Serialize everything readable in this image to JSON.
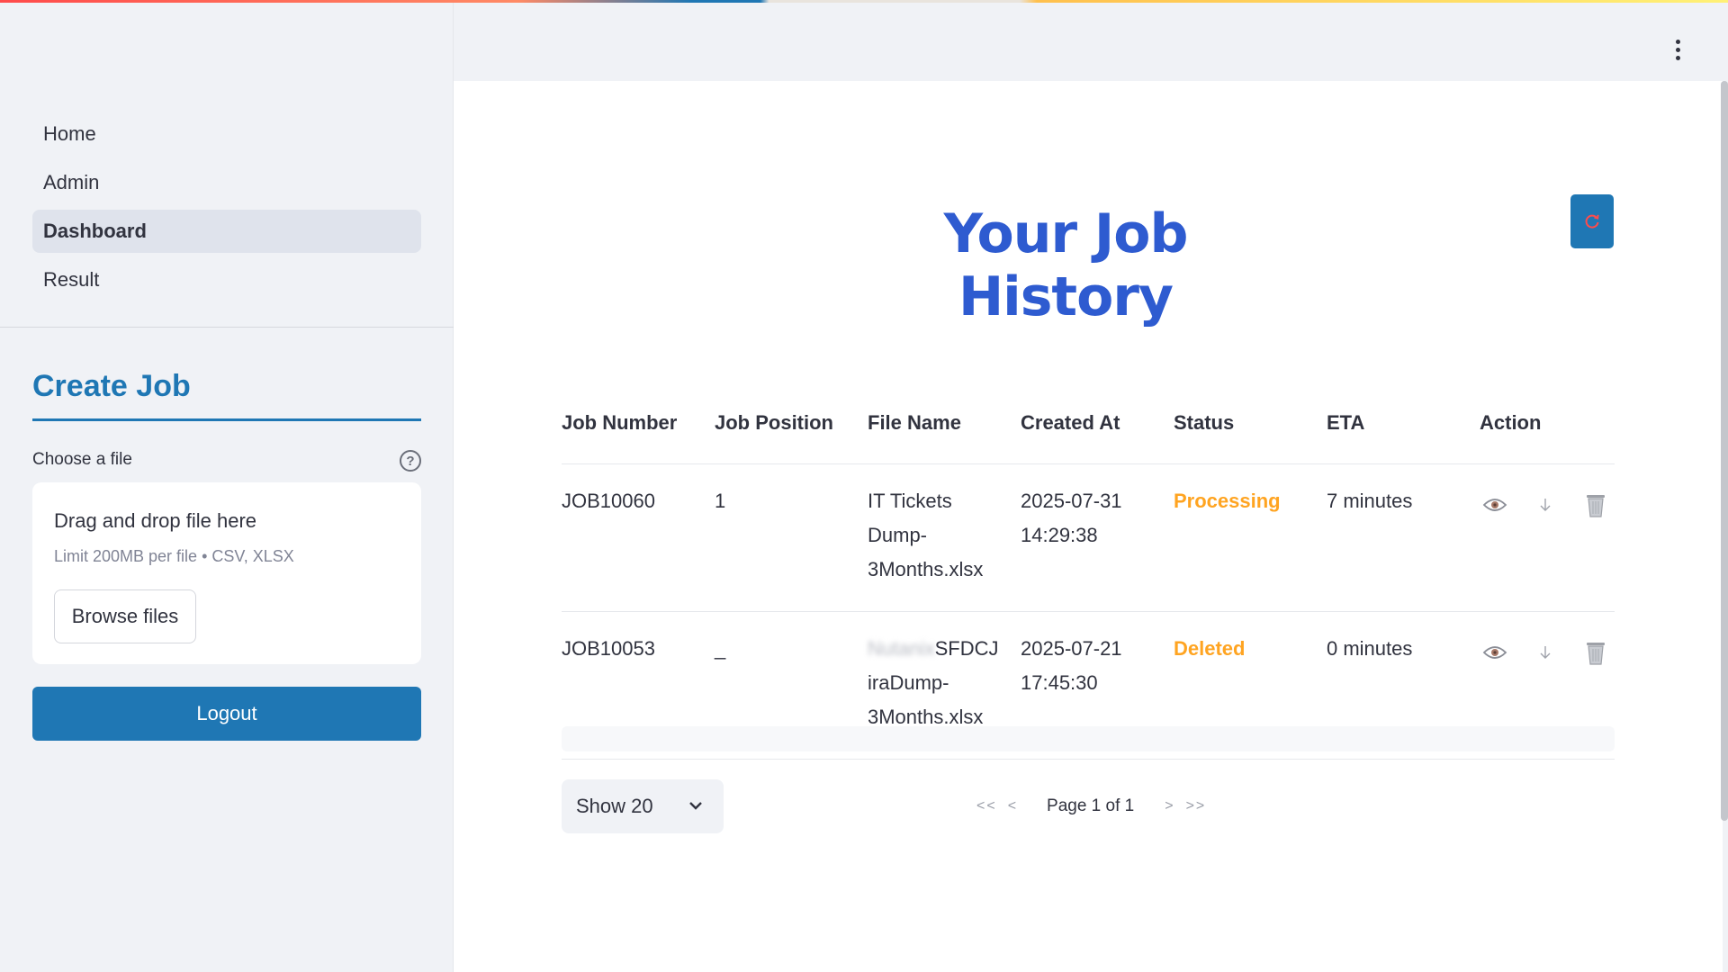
{
  "sidebar": {
    "nav": [
      "Home",
      "Admin",
      "Dashboard",
      "Result"
    ],
    "active": "Dashboard",
    "create_job": {
      "title": "Create Job",
      "choose_label": "Choose a file",
      "help_glyph": "?",
      "dropzone_title": "Drag and drop file here",
      "dropzone_limit": "Limit 200MB per file • CSV, XLSX",
      "browse_label": "Browse files"
    },
    "logout_label": "Logout"
  },
  "main": {
    "title": "Your Job History",
    "table": {
      "headers": [
        "Job Number",
        "Job Position",
        "File Name",
        "Created At",
        "Status",
        "ETA",
        "Action"
      ],
      "rows": [
        {
          "job_number": "JOB10060",
          "job_position": "1",
          "file_name_lines": [
            "IT Tickets",
            "Dump-",
            "3Months.xlsx"
          ],
          "created_date": "2025-07-31",
          "created_time": "14:29:38",
          "status": "Processing",
          "eta": "7 minutes"
        },
        {
          "job_number": "JOB10053",
          "job_position": "_",
          "file_name_blurred": "Nutanix",
          "file_name_lines": [
            "SFDCJ",
            "iraDump-",
            "3Months.xlsx"
          ],
          "created_date": "2025-07-21",
          "created_time": "17:45:30",
          "status": "Deleted",
          "eta": "0 minutes"
        }
      ]
    },
    "pagination": {
      "show_label": "Show 20",
      "first": "<<",
      "prev": "<",
      "page_text": "Page 1 of 1",
      "next": ">",
      "last": ">>"
    }
  },
  "colors": {
    "accent": "#1f77b4",
    "title": "#2e5bd0",
    "status": "#ffa421",
    "refresh_icon": "#ff4b4b"
  },
  "icons": [
    "kebab-menu-icon",
    "help-icon",
    "refresh-icon",
    "eye-icon",
    "download-icon",
    "trash-icon",
    "chevron-down-icon"
  ]
}
